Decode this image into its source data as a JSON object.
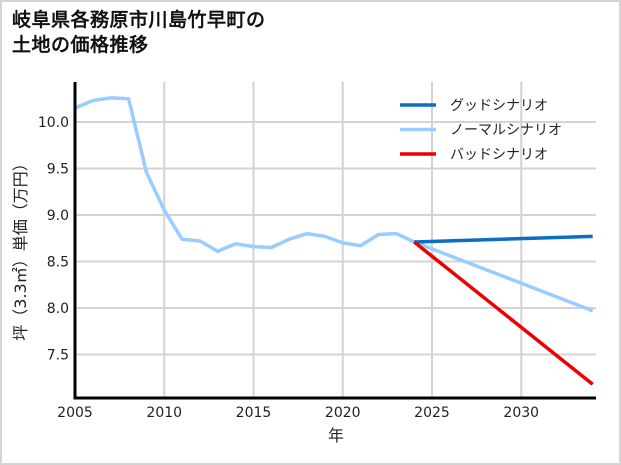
{
  "title": {
    "line1": "岐阜県各務原市川島竹早町の",
    "line2": "土地の価格推移"
  },
  "colors": {
    "good": "#0a6fc2",
    "normal": "#99ccff",
    "bad": "#ee0000",
    "grid": "#d3d3d3",
    "axis": "#000000",
    "border": "#d4d4d4"
  },
  "chart_data": {
    "type": "line",
    "title": "岐阜県各務原市川島竹早町の土地の価格推移",
    "xlabel": "年",
    "ylabel": "坪（3.3㎡）単価（万円）",
    "xlim": [
      2005,
      2034
    ],
    "ylim": [
      7.05,
      10.4
    ],
    "x_ticks": [
      2005,
      2010,
      2015,
      2020,
      2025,
      2030
    ],
    "y_ticks": [
      7.5,
      8.0,
      8.5,
      9.0,
      9.5,
      10.0
    ],
    "grid": true,
    "legend_position": "upper right",
    "series": [
      {
        "name": "グッドシナリオ",
        "color": "#0a6fc2",
        "x": [
          2024,
          2034
        ],
        "values": [
          8.71,
          8.77
        ]
      },
      {
        "name": "ノーマルシナリオ",
        "color": "#99ccff",
        "x": [
          2005,
          2006,
          2007,
          2008,
          2009,
          2010,
          2011,
          2012,
          2013,
          2014,
          2015,
          2016,
          2017,
          2018,
          2019,
          2020,
          2021,
          2022,
          2023,
          2024,
          2034
        ],
        "values": [
          10.15,
          10.23,
          10.26,
          10.25,
          9.46,
          9.05,
          8.74,
          8.72,
          8.61,
          8.69,
          8.66,
          8.65,
          8.74,
          8.8,
          8.77,
          8.7,
          8.67,
          8.79,
          8.8,
          8.71,
          7.97
        ]
      },
      {
        "name": "バッドシナリオ",
        "color": "#ee0000",
        "x": [
          2024,
          2034
        ],
        "values": [
          8.71,
          7.18
        ]
      }
    ]
  }
}
